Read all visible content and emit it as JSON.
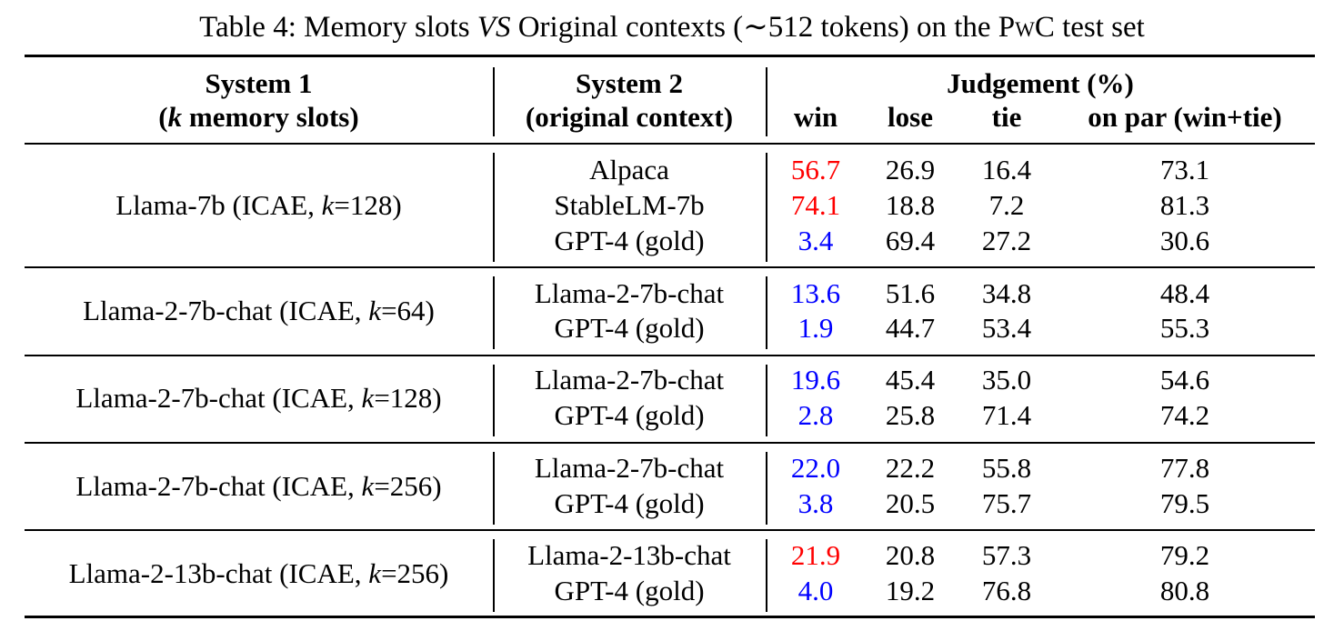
{
  "caption": {
    "prefix": "Table 4: Memory slots ",
    "vs": "VS",
    "middle": " Original contexts (∼512 tokens) on the ",
    "dataset": "PwC",
    "suffix": " test set"
  },
  "header": {
    "system1_line1": "System 1",
    "system1_k": "k",
    "system1_line2_rest": " memory slots)",
    "system2_line1": "System 2",
    "system2_line2": "(original context)",
    "judgement": "Judgement (%)",
    "col_win": "win",
    "col_lose": "lose",
    "col_tie": "tie",
    "col_onpar": "on par (win+tie)"
  },
  "colors": {
    "red": "#ff0000",
    "blue": "#0000ff",
    "black": "#000000"
  },
  "groups": [
    {
      "system1_prefix": "Llama-7b (ICAE, ",
      "k_value": "=128)",
      "rows": [
        {
          "system2": "Alpaca",
          "win": "56.7",
          "win_color": "red",
          "lose": "26.9",
          "tie": "16.4",
          "onpar": "73.1"
        },
        {
          "system2": "StableLM-7b",
          "win": "74.1",
          "win_color": "red",
          "lose": "18.8",
          "tie": "7.2",
          "onpar": "81.3"
        },
        {
          "system2": "GPT-4 (gold)",
          "win": "3.4",
          "win_color": "blue",
          "lose": "69.4",
          "tie": "27.2",
          "onpar": "30.6"
        }
      ]
    },
    {
      "system1_prefix": "Llama-2-7b-chat (ICAE, ",
      "k_value": "=64)",
      "rows": [
        {
          "system2": "Llama-2-7b-chat",
          "win": "13.6",
          "win_color": "blue",
          "lose": "51.6",
          "tie": "34.8",
          "onpar": "48.4"
        },
        {
          "system2": "GPT-4 (gold)",
          "win": "1.9",
          "win_color": "blue",
          "lose": "44.7",
          "tie": "53.4",
          "onpar": "55.3"
        }
      ]
    },
    {
      "system1_prefix": "Llama-2-7b-chat (ICAE, ",
      "k_value": "=128)",
      "rows": [
        {
          "system2": "Llama-2-7b-chat",
          "win": "19.6",
          "win_color": "blue",
          "lose": "45.4",
          "tie": "35.0",
          "onpar": "54.6"
        },
        {
          "system2": "GPT-4 (gold)",
          "win": "2.8",
          "win_color": "blue",
          "lose": "25.8",
          "tie": "71.4",
          "onpar": "74.2"
        }
      ]
    },
    {
      "system1_prefix": "Llama-2-7b-chat (ICAE, ",
      "k_value": "=256)",
      "rows": [
        {
          "system2": "Llama-2-7b-chat",
          "win": "22.0",
          "win_color": "blue",
          "lose": "22.2",
          "tie": "55.8",
          "onpar": "77.8"
        },
        {
          "system2": "GPT-4 (gold)",
          "win": "3.8",
          "win_color": "blue",
          "lose": "20.5",
          "tie": "75.7",
          "onpar": "79.5"
        }
      ]
    },
    {
      "system1_prefix": "Llama-2-13b-chat (ICAE, ",
      "k_value": "=256)",
      "rows": [
        {
          "system2": "Llama-2-13b-chat",
          "win": "21.9",
          "win_color": "red",
          "lose": "20.8",
          "tie": "57.3",
          "onpar": "79.2"
        },
        {
          "system2": "GPT-4 (gold)",
          "win": "4.0",
          "win_color": "blue",
          "lose": "19.2",
          "tie": "76.8",
          "onpar": "80.8"
        }
      ]
    }
  ]
}
